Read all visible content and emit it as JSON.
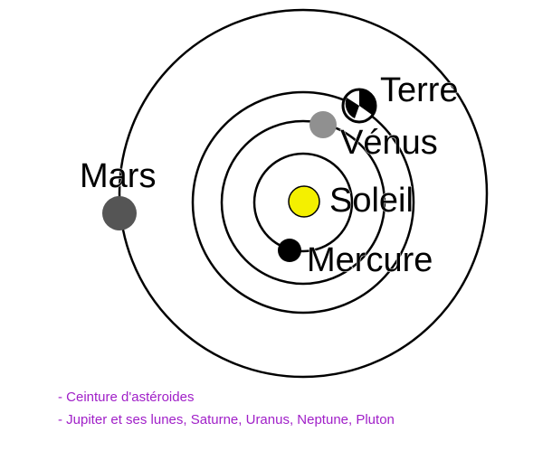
{
  "labels": {
    "earth": "Terre",
    "venus": "Vénus",
    "sun": "Soleil",
    "mercury": "Mercure",
    "mars": "Mars"
  },
  "notes": [
    "- Ceinture d'astéroides",
    "- Jupiter et ses lunes, Saturne, Uranus, Neptune, Pluton"
  ]
}
